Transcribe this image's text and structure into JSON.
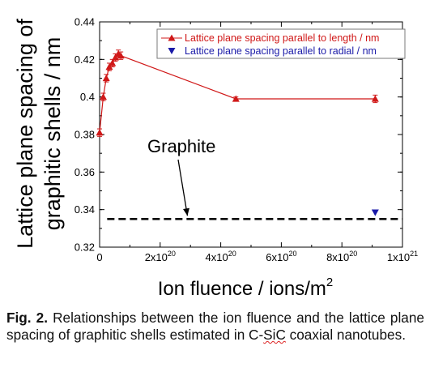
{
  "chart_data": {
    "type": "scatter",
    "ylabel_line1": "Lattice plane spacing of",
    "ylabel_line2": "graphitic shells / nm",
    "xlabel_text": "Ion fluence / ions/m",
    "xlabel_sup": "2",
    "xlim": [
      0,
      1e+21
    ],
    "ylim": [
      0.32,
      0.44
    ],
    "x_ticks": [
      {
        "value": 0,
        "mantissa": "0",
        "exp": ""
      },
      {
        "value": 2e+20,
        "mantissa": "2x10",
        "exp": "20"
      },
      {
        "value": 4e+20,
        "mantissa": "4x10",
        "exp": "20"
      },
      {
        "value": 6e+20,
        "mantissa": "6x10",
        "exp": "20"
      },
      {
        "value": 8e+20,
        "mantissa": "8x10",
        "exp": "20"
      },
      {
        "value": 1e+21,
        "mantissa": "1x10",
        "exp": "21"
      }
    ],
    "y_ticks": [
      {
        "value": 0.32,
        "label": "0.32"
      },
      {
        "value": 0.34,
        "label": "0.34"
      },
      {
        "value": 0.36,
        "label": "0.36"
      },
      {
        "value": 0.38,
        "label": "0.38"
      },
      {
        "value": 0.4,
        "label": "0.4"
      },
      {
        "value": 0.42,
        "label": "0.42"
      },
      {
        "value": 0.44,
        "label": "0.44"
      }
    ],
    "series": [
      {
        "name": "Lattice plane spacing parallel to length / nm",
        "color": "#d01818",
        "marker": "triangle-up",
        "connected": true,
        "points": [
          {
            "x": 0,
            "y": 0.381,
            "err": 0.002
          },
          {
            "x": 1.2e+19,
            "y": 0.4,
            "err": 0.002
          },
          {
            "x": 2.2e+19,
            "y": 0.41,
            "err": 0.002
          },
          {
            "x": 3.2e+19,
            "y": 0.416,
            "err": 0.002
          },
          {
            "x": 4.2e+19,
            "y": 0.418,
            "err": 0.002
          },
          {
            "x": 5.2e+19,
            "y": 0.421,
            "err": 0.002
          },
          {
            "x": 6.2e+19,
            "y": 0.423,
            "err": 0.002
          },
          {
            "x": 7e+19,
            "y": 0.422,
            "err": 0.002
          },
          {
            "x": 4.5e+20,
            "y": 0.399,
            "err": 0.001
          },
          {
            "x": 9.1e+20,
            "y": 0.399,
            "err": 0.002
          }
        ]
      },
      {
        "name": "Lattice plane spacing parallel to radial / nm",
        "color": "#1a1aa8",
        "marker": "triangle-down",
        "connected": false,
        "points": [
          {
            "x": 9.1e+20,
            "y": 0.3385,
            "err": 0
          }
        ]
      }
    ],
    "reference": {
      "label": "Graphite",
      "y": 0.335,
      "style": "dashed",
      "color": "#000000"
    },
    "annotation": {
      "text": "Graphite",
      "arrow_target_x": 2.9e+20,
      "arrow_target_y": 0.335
    },
    "legend_position": "top-right",
    "grid": false
  },
  "caption": {
    "label": "Fig. 2.",
    "text_before": " Relationships between the ion fluence and the lattice plane spacing of graphitic shells estimated in C-",
    "wavy_word": "SiC",
    "text_after": " coaxial nanotubes."
  }
}
